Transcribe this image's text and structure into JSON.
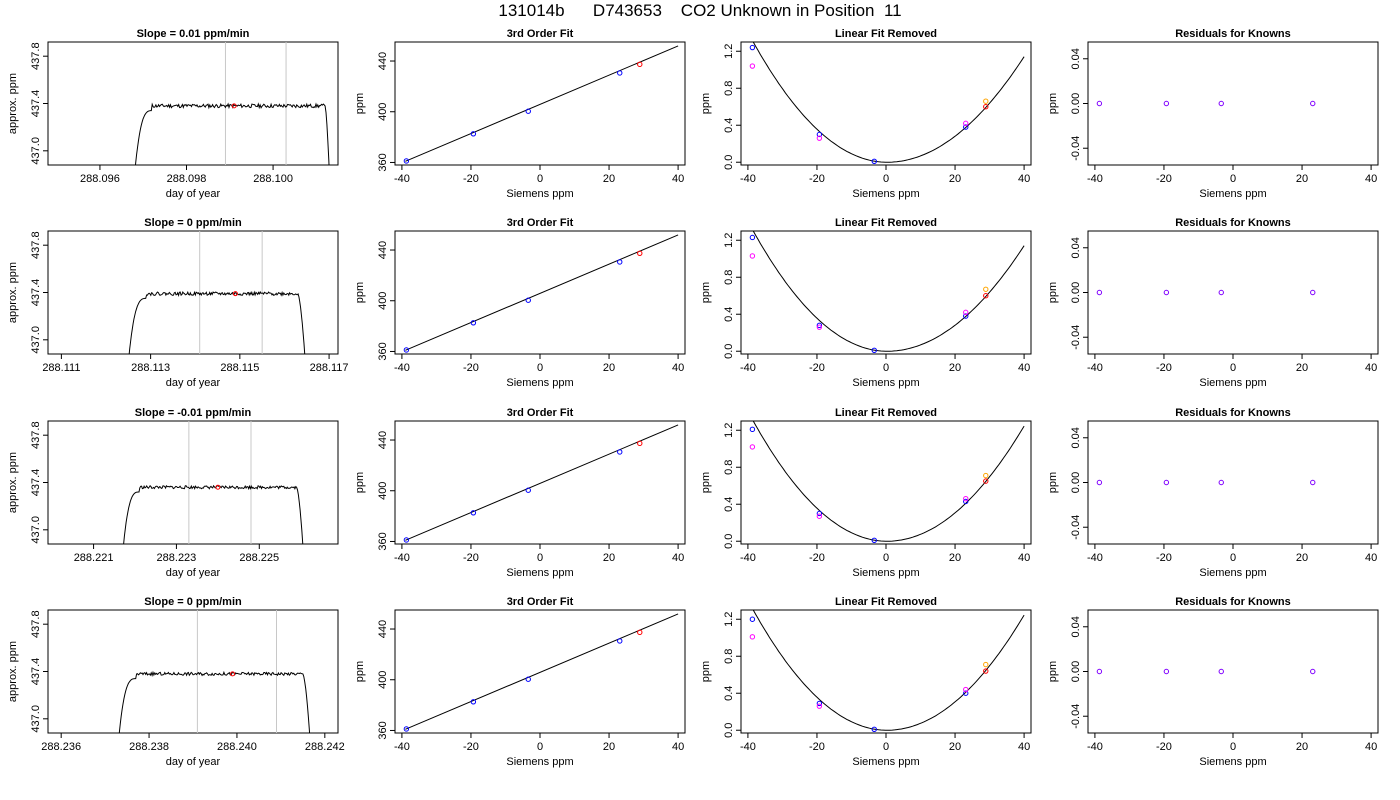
{
  "page": {
    "title": "131014b      D743653    CO2 Unknown in Position  11"
  },
  "style": {
    "trace_color": "#000000",
    "marker_blue": "#0000ff",
    "marker_red": "#ff0000",
    "marker_magenta": "#ff00ff",
    "marker_orange": "#ffa500",
    "marker_purple": "#8000ff",
    "window_line_color": "#c8c8c8"
  },
  "chart_data": [
    {
      "row": 1,
      "type": "line",
      "title": "Slope =  0.01  ppm/min",
      "xlabel": "day of year",
      "ylabel": "approx. ppm",
      "xlim": [
        288.0948,
        288.1015
      ],
      "ylim": [
        436.88,
        437.92
      ],
      "xticks": [
        288.096,
        288.098,
        288.1
      ],
      "xtick_labels": [
        "288.096",
        "288.098",
        "288.100"
      ],
      "yticks": [
        437.0,
        437.4,
        437.8
      ],
      "ytick_labels": [
        "437.0",
        "437.4",
        "437.8"
      ],
      "window": [
        288.0989,
        288.1003
      ],
      "marker": {
        "x": 288.0991,
        "y": 437.38
      },
      "trace": {
        "start": 288.0967,
        "rise_end": 288.0972,
        "plateau": 437.38,
        "amp": 0.016,
        "fall_start": 288.1012,
        "end": 288.10135,
        "seed": 11
      }
    },
    {
      "row": 1,
      "type": "scatter",
      "title": "3rd Order Fit",
      "xlabel": "Siemens ppm",
      "ylabel": "ppm",
      "xlim": [
        -42,
        42
      ],
      "ylim": [
        358,
        455
      ],
      "xticks": [
        -40,
        -20,
        0,
        20,
        40
      ],
      "xtick_labels": [
        "-40",
        "-20",
        "0",
        "20",
        "40"
      ],
      "yticks": [
        360,
        400,
        440
      ],
      "ytick_labels": [
        "360",
        "400",
        "440"
      ],
      "fit_line": [
        [
          -39,
          360.9
        ],
        [
          40,
          451.9
        ]
      ],
      "points": [
        {
          "x": -38.7,
          "y": 361.2,
          "role": "known"
        },
        {
          "x": -19.3,
          "y": 382.6,
          "role": "known"
        },
        {
          "x": -3.4,
          "y": 400.4,
          "role": "known"
        },
        {
          "x": 23.1,
          "y": 430.6,
          "role": "known"
        },
        {
          "x": 28.9,
          "y": 437.4,
          "role": "unknown"
        }
      ]
    },
    {
      "row": 1,
      "type": "scatter",
      "title": "Linear Fit Removed",
      "xlabel": "Siemens ppm",
      "ylabel": "ppm",
      "xlim": [
        -42,
        42
      ],
      "ylim": [
        -0.03,
        1.3
      ],
      "xticks": [
        -40,
        -20,
        0,
        20,
        40
      ],
      "xtick_labels": [
        "-40",
        "-20",
        "0",
        "20",
        "40"
      ],
      "yticks": [
        0.0,
        0.4,
        0.8,
        1.2
      ],
      "ytick_labels": [
        "0.0",
        "0.4",
        "0.8",
        "1.2"
      ],
      "curve": {
        "xmin": -39,
        "xmax": 40,
        "vertex_x": 0.3,
        "a_left": 0.000866,
        "a_right": 0.000724
      },
      "points": [
        {
          "x": -38.7,
          "y": 1.24,
          "role": "known"
        },
        {
          "x": -38.7,
          "y": 1.04,
          "role": "alt"
        },
        {
          "x": -19.3,
          "y": 0.3,
          "role": "known"
        },
        {
          "x": -19.3,
          "y": 0.26,
          "role": "alt"
        },
        {
          "x": -3.4,
          "y": 0.01,
          "role": "known"
        },
        {
          "x": 23.1,
          "y": 0.38,
          "role": "known"
        },
        {
          "x": 23.1,
          "y": 0.42,
          "role": "alt"
        },
        {
          "x": 28.9,
          "y": 0.6,
          "role": "unknown"
        },
        {
          "x": 28.9,
          "y": 0.66,
          "role": "flag"
        }
      ]
    },
    {
      "row": 1,
      "type": "scatter",
      "title": "Residuals for Knowns",
      "xlabel": "Siemens ppm",
      "ylabel": "ppm",
      "xlim": [
        -42,
        42
      ],
      "ylim": [
        -0.055,
        0.055
      ],
      "xticks": [
        -40,
        -20,
        0,
        20,
        40
      ],
      "xtick_labels": [
        "-40",
        "-20",
        "0",
        "20",
        "40"
      ],
      "yticks": [
        -0.04,
        0.0,
        0.04
      ],
      "ytick_labels": [
        "-0.04",
        "0.00",
        "0.04"
      ],
      "points": [
        {
          "x": -38.7,
          "y": 0.0,
          "role": "residual"
        },
        {
          "x": -19.3,
          "y": 0.0,
          "role": "residual"
        },
        {
          "x": -3.4,
          "y": 0.0,
          "role": "residual"
        },
        {
          "x": 23.1,
          "y": 0.0,
          "role": "residual"
        }
      ]
    },
    {
      "row": 2,
      "type": "line",
      "title": "Slope =  0  ppm/min",
      "xlabel": "day of year",
      "ylabel": "approx. ppm",
      "xlim": [
        288.1107,
        288.1172
      ],
      "ylim": [
        436.88,
        437.92
      ],
      "xticks": [
        288.111,
        288.113,
        288.115,
        288.117
      ],
      "xtick_labels": [
        "288.111",
        "288.113",
        "288.115",
        "288.117"
      ],
      "yticks": [
        437.0,
        437.4,
        437.8
      ],
      "ytick_labels": [
        "437.0",
        "437.4",
        "437.8"
      ],
      "window": [
        288.1141,
        288.1155
      ],
      "marker": {
        "x": 288.1149,
        "y": 437.39
      },
      "trace": {
        "start": 288.1124,
        "rise_end": 288.1129,
        "plateau": 437.39,
        "amp": 0.014,
        "fall_start": 288.1163,
        "end": 288.11655,
        "seed": 22
      }
    },
    {
      "row": 2,
      "type": "scatter",
      "title": "3rd Order Fit",
      "xlabel": "Siemens ppm",
      "ylabel": "ppm",
      "xlim": [
        -42,
        42
      ],
      "ylim": [
        358,
        455
      ],
      "xticks": [
        -40,
        -20,
        0,
        20,
        40
      ],
      "xtick_labels": [
        "-40",
        "-20",
        "0",
        "20",
        "40"
      ],
      "yticks": [
        360,
        400,
        440
      ],
      "ytick_labels": [
        "360",
        "400",
        "440"
      ],
      "fit_line": [
        [
          -39,
          360.9
        ],
        [
          40,
          451.9
        ]
      ],
      "points": [
        {
          "x": -38.7,
          "y": 361.2,
          "role": "known"
        },
        {
          "x": -19.3,
          "y": 382.6,
          "role": "known"
        },
        {
          "x": -3.4,
          "y": 400.4,
          "role": "known"
        },
        {
          "x": 23.1,
          "y": 430.6,
          "role": "known"
        },
        {
          "x": 28.9,
          "y": 437.4,
          "role": "unknown"
        }
      ]
    },
    {
      "row": 2,
      "type": "scatter",
      "title": "Linear Fit Removed",
      "xlabel": "Siemens ppm",
      "ylabel": "ppm",
      "xlim": [
        -42,
        42
      ],
      "ylim": [
        -0.03,
        1.3
      ],
      "xticks": [
        -40,
        -20,
        0,
        20,
        40
      ],
      "xtick_labels": [
        "-40",
        "-20",
        "0",
        "20",
        "40"
      ],
      "yticks": [
        0.0,
        0.4,
        0.8,
        1.2
      ],
      "ytick_labels": [
        "0.0",
        "0.4",
        "0.8",
        "1.2"
      ],
      "curve": {
        "xmin": -39,
        "xmax": 40,
        "vertex_x": 0.3,
        "a_left": 0.000866,
        "a_right": 0.000724
      },
      "points": [
        {
          "x": -38.7,
          "y": 1.23,
          "role": "known"
        },
        {
          "x": -38.7,
          "y": 1.03,
          "role": "alt"
        },
        {
          "x": -19.3,
          "y": 0.28,
          "role": "known"
        },
        {
          "x": -19.3,
          "y": 0.26,
          "role": "alt"
        },
        {
          "x": -3.4,
          "y": 0.01,
          "role": "known"
        },
        {
          "x": 23.1,
          "y": 0.38,
          "role": "known"
        },
        {
          "x": 23.1,
          "y": 0.42,
          "role": "alt"
        },
        {
          "x": 28.9,
          "y": 0.6,
          "role": "unknown"
        },
        {
          "x": 28.9,
          "y": 0.67,
          "role": "flag"
        }
      ]
    },
    {
      "row": 2,
      "type": "scatter",
      "title": "Residuals for Knowns",
      "xlabel": "Siemens ppm",
      "ylabel": "ppm",
      "xlim": [
        -42,
        42
      ],
      "ylim": [
        -0.055,
        0.055
      ],
      "xticks": [
        -40,
        -20,
        0,
        20,
        40
      ],
      "xtick_labels": [
        "-40",
        "-20",
        "0",
        "20",
        "40"
      ],
      "yticks": [
        -0.04,
        0.0,
        0.04
      ],
      "ytick_labels": [
        "-0.04",
        "0.00",
        "0.04"
      ],
      "points": [
        {
          "x": -38.7,
          "y": 0.0,
          "role": "residual"
        },
        {
          "x": -19.3,
          "y": 0.0,
          "role": "residual"
        },
        {
          "x": -3.4,
          "y": 0.0,
          "role": "residual"
        },
        {
          "x": 23.1,
          "y": 0.0,
          "role": "residual"
        }
      ]
    },
    {
      "row": 3,
      "type": "line",
      "title": "Slope =  -0.01  ppm/min",
      "xlabel": "day of year",
      "ylabel": "approx. ppm",
      "xlim": [
        288.2199,
        288.2269
      ],
      "ylim": [
        436.88,
        437.92
      ],
      "xticks": [
        288.221,
        288.223,
        288.225
      ],
      "xtick_labels": [
        "288.221",
        "288.223",
        "288.225"
      ],
      "yticks": [
        437.0,
        437.4,
        437.8
      ],
      "ytick_labels": [
        "437.0",
        "437.4",
        "437.8"
      ],
      "window": [
        288.2233,
        288.2248
      ],
      "marker": {
        "x": 288.224,
        "y": 437.36
      },
      "trace": {
        "start": 288.2216,
        "rise_end": 288.2221,
        "plateau": 437.36,
        "amp": 0.013,
        "fall_start": 288.2259,
        "end": 288.22615,
        "seed": 33
      }
    },
    {
      "row": 3,
      "type": "scatter",
      "title": "3rd Order Fit",
      "xlabel": "Siemens ppm",
      "ylabel": "ppm",
      "xlim": [
        -42,
        42
      ],
      "ylim": [
        358,
        455
      ],
      "xticks": [
        -40,
        -20,
        0,
        20,
        40
      ],
      "xtick_labels": [
        "-40",
        "-20",
        "0",
        "20",
        "40"
      ],
      "yticks": [
        360,
        400,
        440
      ],
      "ytick_labels": [
        "360",
        "400",
        "440"
      ],
      "fit_line": [
        [
          -39,
          360.9
        ],
        [
          40,
          451.9
        ]
      ],
      "points": [
        {
          "x": -38.7,
          "y": 361.2,
          "role": "known"
        },
        {
          "x": -19.3,
          "y": 382.6,
          "role": "known"
        },
        {
          "x": -3.4,
          "y": 400.4,
          "role": "known"
        },
        {
          "x": 23.1,
          "y": 430.6,
          "role": "known"
        },
        {
          "x": 28.9,
          "y": 437.4,
          "role": "unknown"
        }
      ]
    },
    {
      "row": 3,
      "type": "scatter",
      "title": "Linear Fit Removed",
      "xlabel": "Siemens ppm",
      "ylabel": "ppm",
      "xlim": [
        -42,
        42
      ],
      "ylim": [
        -0.03,
        1.3
      ],
      "xticks": [
        -40,
        -20,
        0,
        20,
        40
      ],
      "xtick_labels": [
        "-40",
        "-20",
        "0",
        "20",
        "40"
      ],
      "yticks": [
        0.0,
        0.4,
        0.8,
        1.2
      ],
      "ytick_labels": [
        "0.0",
        "0.4",
        "0.8",
        "1.2"
      ],
      "curve": {
        "xmin": -39,
        "xmax": 40,
        "vertex_x": 0.3,
        "a_left": 0.000866,
        "a_right": 0.00079
      },
      "points": [
        {
          "x": -38.7,
          "y": 1.21,
          "role": "known"
        },
        {
          "x": -38.7,
          "y": 1.02,
          "role": "alt"
        },
        {
          "x": -19.3,
          "y": 0.3,
          "role": "known"
        },
        {
          "x": -19.3,
          "y": 0.27,
          "role": "alt"
        },
        {
          "x": -3.4,
          "y": 0.01,
          "role": "known"
        },
        {
          "x": 23.1,
          "y": 0.43,
          "role": "known"
        },
        {
          "x": 23.1,
          "y": 0.46,
          "role": "alt"
        },
        {
          "x": 28.9,
          "y": 0.65,
          "role": "unknown"
        },
        {
          "x": 28.9,
          "y": 0.71,
          "role": "flag"
        }
      ]
    },
    {
      "row": 3,
      "type": "scatter",
      "title": "Residuals for Knowns",
      "xlabel": "Siemens ppm",
      "ylabel": "ppm",
      "xlim": [
        -42,
        42
      ],
      "ylim": [
        -0.055,
        0.055
      ],
      "xticks": [
        -40,
        -20,
        0,
        20,
        40
      ],
      "xtick_labels": [
        "-40",
        "-20",
        "0",
        "20",
        "40"
      ],
      "yticks": [
        -0.04,
        0.0,
        0.04
      ],
      "ytick_labels": [
        "-0.04",
        "0.00",
        "0.04"
      ],
      "points": [
        {
          "x": -38.7,
          "y": 0.0,
          "role": "residual"
        },
        {
          "x": -19.3,
          "y": 0.0,
          "role": "residual"
        },
        {
          "x": -3.4,
          "y": 0.0,
          "role": "residual"
        },
        {
          "x": 23.1,
          "y": 0.0,
          "role": "residual"
        }
      ]
    },
    {
      "row": 4,
      "type": "line",
      "title": "Slope =  0  ppm/min",
      "xlabel": "day of year",
      "ylabel": "approx. ppm",
      "xlim": [
        288.2357,
        288.2423
      ],
      "ylim": [
        436.88,
        437.92
      ],
      "xticks": [
        288.236,
        288.238,
        288.24,
        288.242
      ],
      "xtick_labels": [
        "288.236",
        "288.238",
        "288.240",
        "288.242"
      ],
      "yticks": [
        437.0,
        437.4,
        437.8
      ],
      "ytick_labels": [
        "437.0",
        "437.4",
        "437.8"
      ],
      "window": [
        288.2391,
        288.2409
      ],
      "marker": {
        "x": 288.2399,
        "y": 437.38
      },
      "trace": {
        "start": 288.2372,
        "rise_end": 288.2377,
        "plateau": 437.38,
        "amp": 0.013,
        "fall_start": 288.2415,
        "end": 288.24175,
        "seed": 44
      }
    },
    {
      "row": 4,
      "type": "scatter",
      "title": "3rd Order Fit",
      "xlabel": "Siemens ppm",
      "ylabel": "ppm",
      "xlim": [
        -42,
        42
      ],
      "ylim": [
        358,
        455
      ],
      "xticks": [
        -40,
        -20,
        0,
        20,
        40
      ],
      "xtick_labels": [
        "-40",
        "-20",
        "0",
        "20",
        "40"
      ],
      "yticks": [
        360,
        400,
        440
      ],
      "ytick_labels": [
        "360",
        "400",
        "440"
      ],
      "fit_line": [
        [
          -39,
          360.9
        ],
        [
          40,
          451.9
        ]
      ],
      "points": [
        {
          "x": -38.7,
          "y": 361.2,
          "role": "known"
        },
        {
          "x": -19.3,
          "y": 382.6,
          "role": "known"
        },
        {
          "x": -3.4,
          "y": 400.4,
          "role": "known"
        },
        {
          "x": 23.1,
          "y": 430.6,
          "role": "known"
        },
        {
          "x": 28.9,
          "y": 437.4,
          "role": "unknown"
        }
      ]
    },
    {
      "row": 4,
      "type": "scatter",
      "title": "Linear Fit Removed",
      "xlabel": "Siemens ppm",
      "ylabel": "ppm",
      "xlim": [
        -42,
        42
      ],
      "ylim": [
        -0.03,
        1.3
      ],
      "xticks": [
        -40,
        -20,
        0,
        20,
        40
      ],
      "xtick_labels": [
        "-40",
        "-20",
        "0",
        "20",
        "40"
      ],
      "yticks": [
        0.0,
        0.4,
        0.8,
        1.2
      ],
      "ytick_labels": [
        "0.0",
        "0.4",
        "0.8",
        "1.2"
      ],
      "curve": {
        "xmin": -39,
        "xmax": 40,
        "vertex_x": 0.3,
        "a_left": 0.000866,
        "a_right": 0.00079
      },
      "points": [
        {
          "x": -38.7,
          "y": 1.2,
          "role": "known"
        },
        {
          "x": -38.7,
          "y": 1.01,
          "role": "alt"
        },
        {
          "x": -19.3,
          "y": 0.29,
          "role": "known"
        },
        {
          "x": -19.3,
          "y": 0.26,
          "role": "alt"
        },
        {
          "x": -3.4,
          "y": 0.01,
          "role": "known"
        },
        {
          "x": 23.1,
          "y": 0.4,
          "role": "known"
        },
        {
          "x": 23.1,
          "y": 0.44,
          "role": "alt"
        },
        {
          "x": 28.9,
          "y": 0.64,
          "role": "unknown"
        },
        {
          "x": 28.9,
          "y": 0.71,
          "role": "flag"
        }
      ]
    },
    {
      "row": 4,
      "type": "scatter",
      "title": "Residuals for Knowns",
      "xlabel": "Siemens ppm",
      "ylabel": "ppm",
      "xlim": [
        -42,
        42
      ],
      "ylim": [
        -0.055,
        0.055
      ],
      "xticks": [
        -40,
        -20,
        0,
        20,
        40
      ],
      "xtick_labels": [
        "-40",
        "-20",
        "0",
        "20",
        "40"
      ],
      "yticks": [
        -0.04,
        0.0,
        0.04
      ],
      "ytick_labels": [
        "-0.04",
        "0.00",
        "0.04"
      ],
      "points": [
        {
          "x": -38.7,
          "y": 0.0,
          "role": "residual"
        },
        {
          "x": -19.3,
          "y": 0.0,
          "role": "residual"
        },
        {
          "x": -3.4,
          "y": 0.0,
          "role": "residual"
        },
        {
          "x": 23.1,
          "y": 0.0,
          "role": "residual"
        }
      ]
    }
  ]
}
